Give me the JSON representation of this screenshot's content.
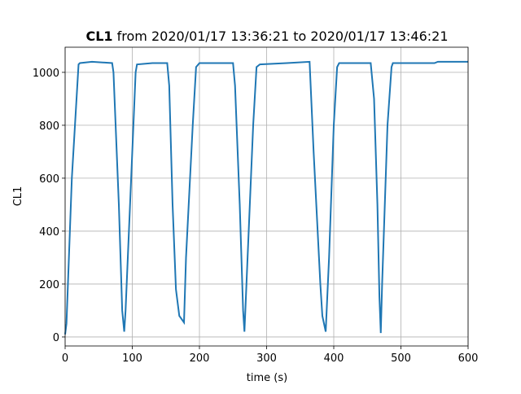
{
  "chart_data": {
    "type": "line",
    "title": {
      "bold": "CL1",
      "rest": " from 2020/01/17 13:36:21 to 2020/01/17 13:46:21"
    },
    "xlabel": "time (s)",
    "ylabel": "CL1",
    "xlim": [
      0,
      600
    ],
    "ylim": [
      -34,
      1095
    ],
    "xticks": [
      0,
      100,
      200,
      300,
      400,
      500,
      600
    ],
    "yticks": [
      0,
      200,
      400,
      600,
      800,
      1000
    ],
    "grid": true,
    "series": [
      {
        "name": "CL1",
        "color": "#1f77b4",
        "x": [
          0,
          2,
          10,
          20,
          22,
          40,
          70,
          72,
          80,
          85,
          88,
          90,
          100,
          105,
          107,
          130,
          152,
          155,
          160,
          165,
          170,
          177,
          180,
          190,
          195,
          200,
          250,
          253,
          260,
          265,
          267,
          270,
          280,
          285,
          290,
          330,
          364,
          370,
          380,
          383,
          388,
          393,
          400,
          405,
          408,
          430,
          455,
          460,
          465,
          468,
          470,
          472,
          480,
          486,
          488,
          550,
          555,
          600
        ],
        "values": [
          10,
          50,
          600,
          1030,
          1035,
          1040,
          1035,
          1000,
          500,
          100,
          20,
          100,
          700,
          1000,
          1030,
          1035,
          1035,
          950,
          500,
          180,
          80,
          55,
          300,
          800,
          1020,
          1035,
          1035,
          950,
          500,
          100,
          20,
          200,
          800,
          1020,
          1030,
          1035,
          1040,
          700,
          200,
          80,
          20,
          300,
          800,
          1020,
          1035,
          1035,
          1035,
          900,
          500,
          150,
          15,
          200,
          800,
          1020,
          1035,
          1035,
          1040,
          1040
        ]
      }
    ]
  }
}
